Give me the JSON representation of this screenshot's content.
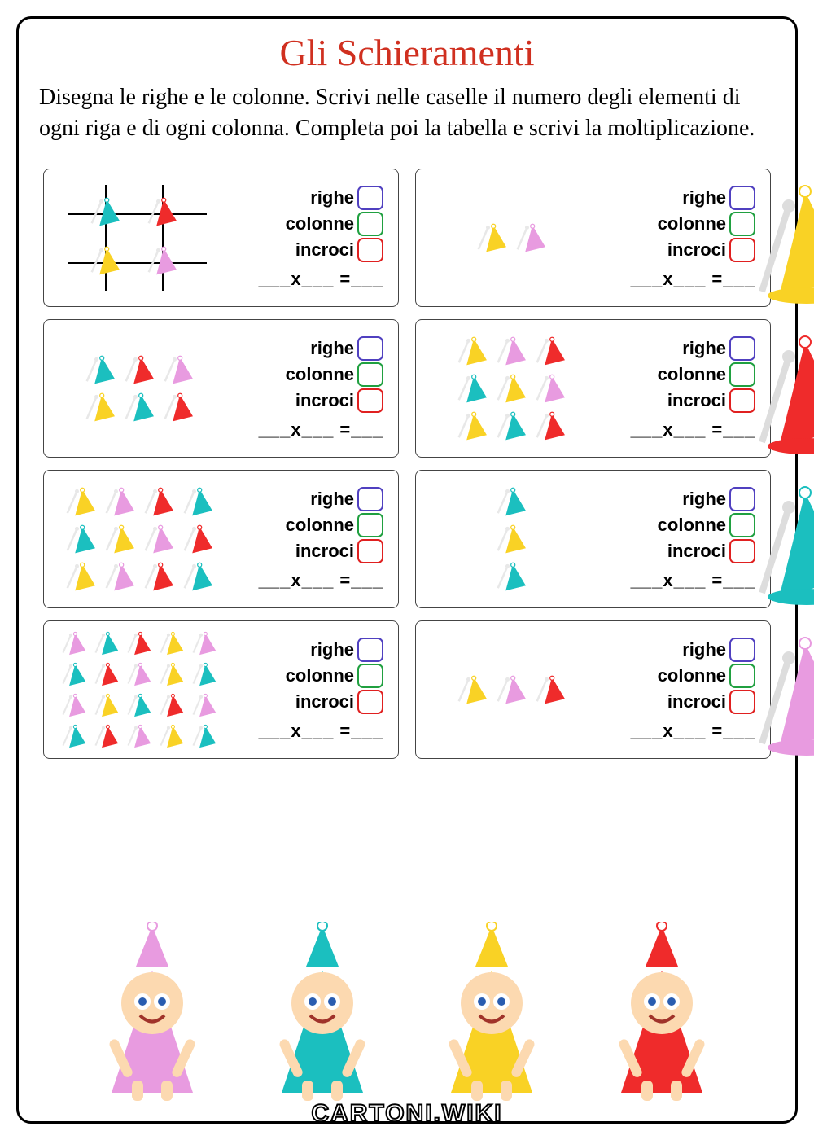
{
  "title": "Gli Schieramenti",
  "instructions": "Disegna le righe e le colonne. Scrivi nelle caselle il numero degli elementi di ogni riga e di ogni colonna. Completa poi la tabella e scrivi la moltiplicazione.",
  "labels": {
    "rows": "righe",
    "columns": "colonne",
    "crossings": "incroci",
    "equation": "___x___ =___"
  },
  "colors": {
    "title": "#d03020",
    "box_rows": "#5040c0",
    "box_cols": "#20a040",
    "box_cross": "#e02020",
    "border": "#000000",
    "hat_teal": "#1bbfbf",
    "hat_red": "#ef2b2b",
    "hat_yellow": "#f9d225",
    "hat_pink": "#e89be0"
  },
  "exercises": [
    {
      "rows": 2,
      "cols": 2,
      "show_grid": true,
      "pattern": [
        "teal",
        "red",
        "yellow",
        "pink"
      ]
    },
    {
      "rows": 1,
      "cols": 2,
      "show_grid": false,
      "pattern": [
        "yellow",
        "pink"
      ],
      "side_char": "yellow"
    },
    {
      "rows": 2,
      "cols": 3,
      "show_grid": false,
      "pattern": [
        "teal",
        "red",
        "pink",
        "yellow",
        "teal",
        "red"
      ]
    },
    {
      "rows": 3,
      "cols": 3,
      "show_grid": false,
      "pattern": [
        "yellow",
        "pink",
        "red",
        "teal",
        "yellow",
        "pink",
        "yellow",
        "teal",
        "red"
      ],
      "side_char": "red"
    },
    {
      "rows": 3,
      "cols": 4,
      "show_grid": false,
      "pattern": [
        "yellow",
        "pink",
        "red",
        "teal",
        "teal",
        "yellow",
        "pink",
        "red",
        "yellow",
        "pink",
        "red",
        "teal"
      ]
    },
    {
      "rows": 3,
      "cols": 1,
      "show_grid": false,
      "pattern": [
        "teal",
        "yellow",
        "teal"
      ],
      "side_char": "teal"
    },
    {
      "rows": 4,
      "cols": 5,
      "show_grid": false,
      "small": true,
      "pattern": [
        "pink",
        "teal",
        "red",
        "yellow",
        "pink",
        "teal",
        "red",
        "pink",
        "yellow",
        "teal",
        "pink",
        "yellow",
        "teal",
        "red",
        "pink",
        "teal",
        "red",
        "pink",
        "yellow",
        "teal"
      ]
    },
    {
      "rows": 1,
      "cols": 3,
      "show_grid": false,
      "pattern": [
        "yellow",
        "pink",
        "red"
      ],
      "side_char": "pink"
    }
  ],
  "bottom_characters": [
    "pink",
    "teal",
    "yellow",
    "red"
  ],
  "watermark": "CARTONI.WIKI"
}
